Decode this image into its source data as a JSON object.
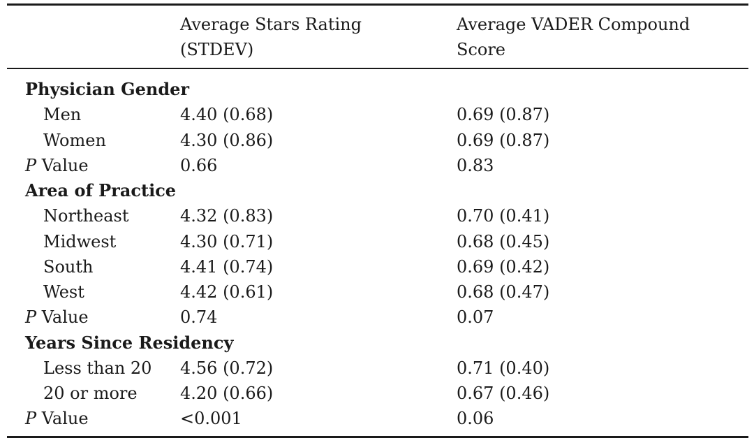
{
  "header": {
    "col1_line1": "Average Stars Rating",
    "col1_line2": "(STDEV)",
    "col2_line1": "Average VADER Compound",
    "col2_line2": "Score"
  },
  "sections": [
    {
      "title": "Physician Gender",
      "rows": [
        {
          "label": "Men",
          "stars": "4.40 (0.68)",
          "vader": "0.69 (0.87)"
        },
        {
          "label": "Women",
          "stars": "4.30 (0.86)",
          "vader": "0.69 (0.87)"
        }
      ],
      "pvalue": {
        "p": "P",
        "label": " Value",
        "stars": "0.66",
        "vader": "0.83"
      }
    },
    {
      "title": "Area of Practice",
      "rows": [
        {
          "label": "Northeast",
          "stars": "4.32 (0.83)",
          "vader": "0.70 (0.41)"
        },
        {
          "label": "Midwest",
          "stars": "4.30 (0.71)",
          "vader": "0.68 (0.45)"
        },
        {
          "label": "South",
          "stars": "4.41 (0.74)",
          "vader": "0.69 (0.42)"
        },
        {
          "label": "West",
          "stars": "4.42 (0.61)",
          "vader": "0.68 (0.47)"
        }
      ],
      "pvalue": {
        "p": "P",
        "label": " Value",
        "stars": "0.74",
        "vader": "0.07"
      }
    },
    {
      "title": "Years Since Residency",
      "rows": [
        {
          "label": "Less than 20",
          "stars": "4.56 (0.72)",
          "vader": "0.71 (0.40)"
        },
        {
          "label": "20 or more",
          "stars": "4.20 (0.66)",
          "vader": "0.67 (0.46)"
        }
      ],
      "pvalue": {
        "p": "P",
        "label": " Value",
        "stars": "<0.001",
        "vader": "0.06"
      }
    }
  ]
}
